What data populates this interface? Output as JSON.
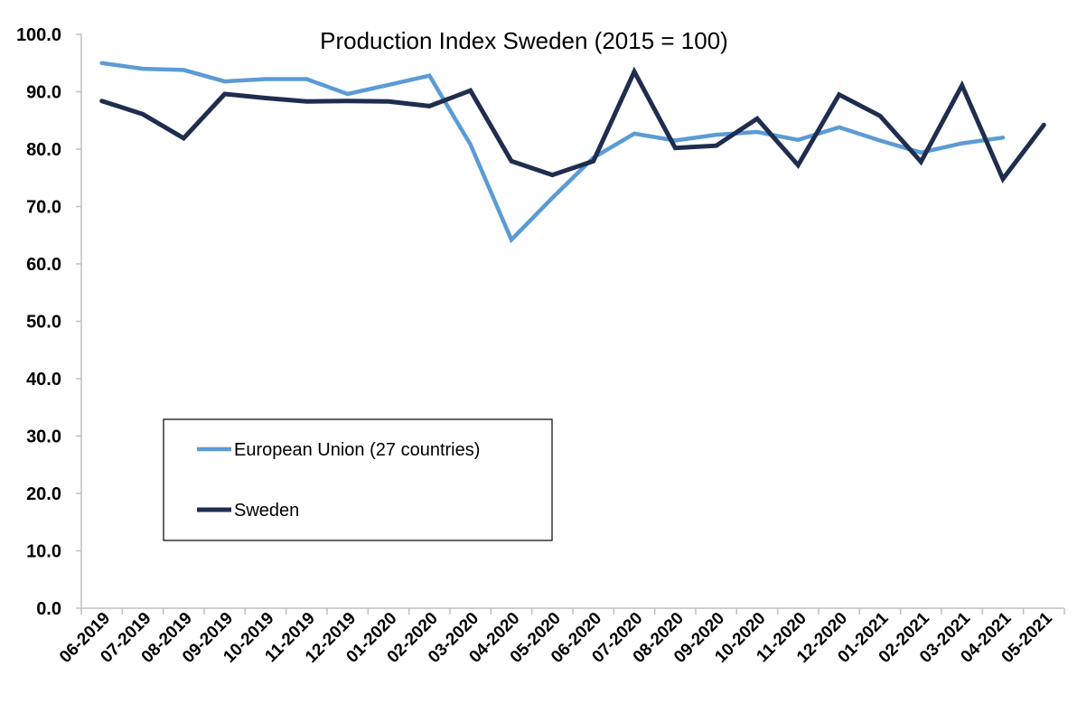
{
  "chart_data": {
    "type": "line",
    "title": "Production Index Sweden (2015 = 100)",
    "xlabel": "",
    "ylabel": "",
    "ylim": [
      0,
      100
    ],
    "yticks": [
      "0.0",
      "10.0",
      "20.0",
      "30.0",
      "40.0",
      "50.0",
      "60.0",
      "70.0",
      "80.0",
      "90.0",
      "100.0"
    ],
    "grid": false,
    "legend_position": "left",
    "categories": [
      "06-2019",
      "07-2019",
      "08-2019",
      "09-2019",
      "10-2019",
      "11-2019",
      "12-2019",
      "01-2020",
      "02-2020",
      "03-2020",
      "04-2020",
      "05-2020",
      "06-2020",
      "07-2020",
      "08-2020",
      "09-2020",
      "10-2020",
      "11-2020",
      "12-2020",
      "01-2021",
      "02-2021",
      "03-2021",
      "04-2021",
      "05-2021"
    ],
    "series": [
      {
        "name": "European Union (27 countries)",
        "color": "#5b9bd5",
        "values": [
          95.0,
          94.0,
          93.8,
          91.8,
          92.2,
          92.2,
          89.6,
          91.2,
          92.8,
          80.8,
          64.2,
          71.5,
          78.5,
          82.7,
          81.5,
          82.5,
          83.0,
          81.6,
          83.8,
          81.5,
          79.4,
          81.0,
          82.0,
          null
        ]
      },
      {
        "name": "Sweden",
        "color": "#1f2d4e",
        "values": [
          88.4,
          86.1,
          81.9,
          89.6,
          88.9,
          88.3,
          88.4,
          88.3,
          87.5,
          90.2,
          77.9,
          75.5,
          77.9,
          93.5,
          80.2,
          80.6,
          85.3,
          77.2,
          89.5,
          85.8,
          77.8,
          91.1,
          74.8,
          84.2
        ]
      }
    ]
  }
}
